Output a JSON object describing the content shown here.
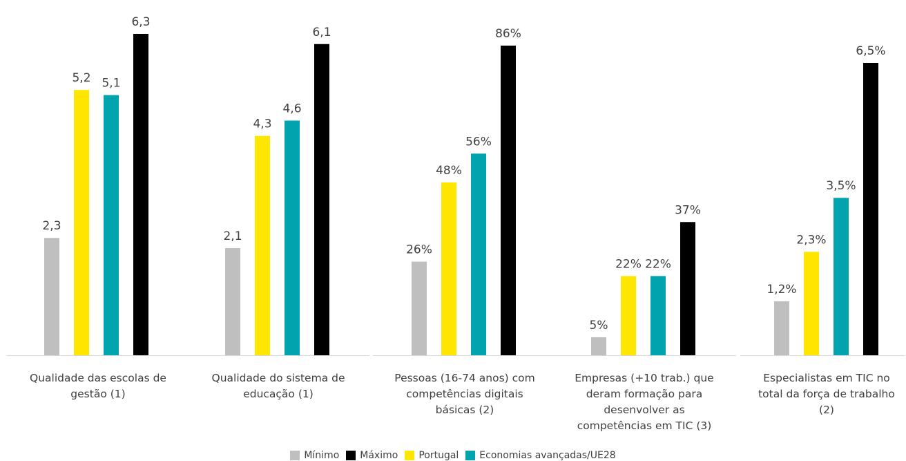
{
  "chart_data": {
    "type": "bar",
    "series_names": [
      "Mínimo",
      "Portugal",
      "Economias avançadas/UE28",
      "Máximo"
    ],
    "colors": [
      "#bfbfbf",
      "#ffe600",
      "#00a3ae",
      "#000000"
    ],
    "groups": [
      {
        "label_lines": [
          "Qualidade das escolas de",
          "gestão (1)"
        ],
        "panel": 1,
        "values": [
          2.3,
          5.2,
          5.1,
          6.3
        ],
        "labels": [
          "2,3",
          "5,2",
          "5,1",
          "6,3"
        ]
      },
      {
        "label_lines": [
          "Qualidade do sistema de",
          "educação (1)"
        ],
        "panel": 1,
        "values": [
          2.1,
          4.3,
          4.6,
          6.1
        ],
        "labels": [
          "2,1",
          "4,3",
          "4,6",
          "6,1"
        ]
      },
      {
        "label_lines": [
          "Pessoas (16-74 anos) com",
          "competências digitais",
          "básicas (2)"
        ],
        "panel": 2,
        "values": [
          26,
          48,
          56,
          86
        ],
        "labels": [
          "26%",
          "48%",
          "56%",
          "86%"
        ]
      },
      {
        "label_lines": [
          "Empresas (+10 trab.) que",
          "deram formação para",
          "desenvolver as",
          "competências em TIC (3)"
        ],
        "panel": 2,
        "values": [
          5,
          22,
          22,
          37
        ],
        "labels": [
          "5%",
          "22%",
          "22%",
          "37%"
        ]
      },
      {
        "label_lines": [
          "Especialistas em TIC no",
          "total da força de trabalho",
          "(2)"
        ],
        "panel": 3,
        "values": [
          1.2,
          2.3,
          3.5,
          6.5
        ],
        "labels": [
          "1,2%",
          "2,3%",
          "3,5%",
          "6,5%"
        ]
      }
    ],
    "legend": [
      {
        "name": "Mínimo",
        "color": "#bfbfbf"
      },
      {
        "name": "Máximo",
        "color": "#000000"
      },
      {
        "name": "Portugal",
        "color": "#ffe600"
      },
      {
        "name": "Economias avançadas/UE28",
        "color": "#00a3ae"
      }
    ]
  }
}
